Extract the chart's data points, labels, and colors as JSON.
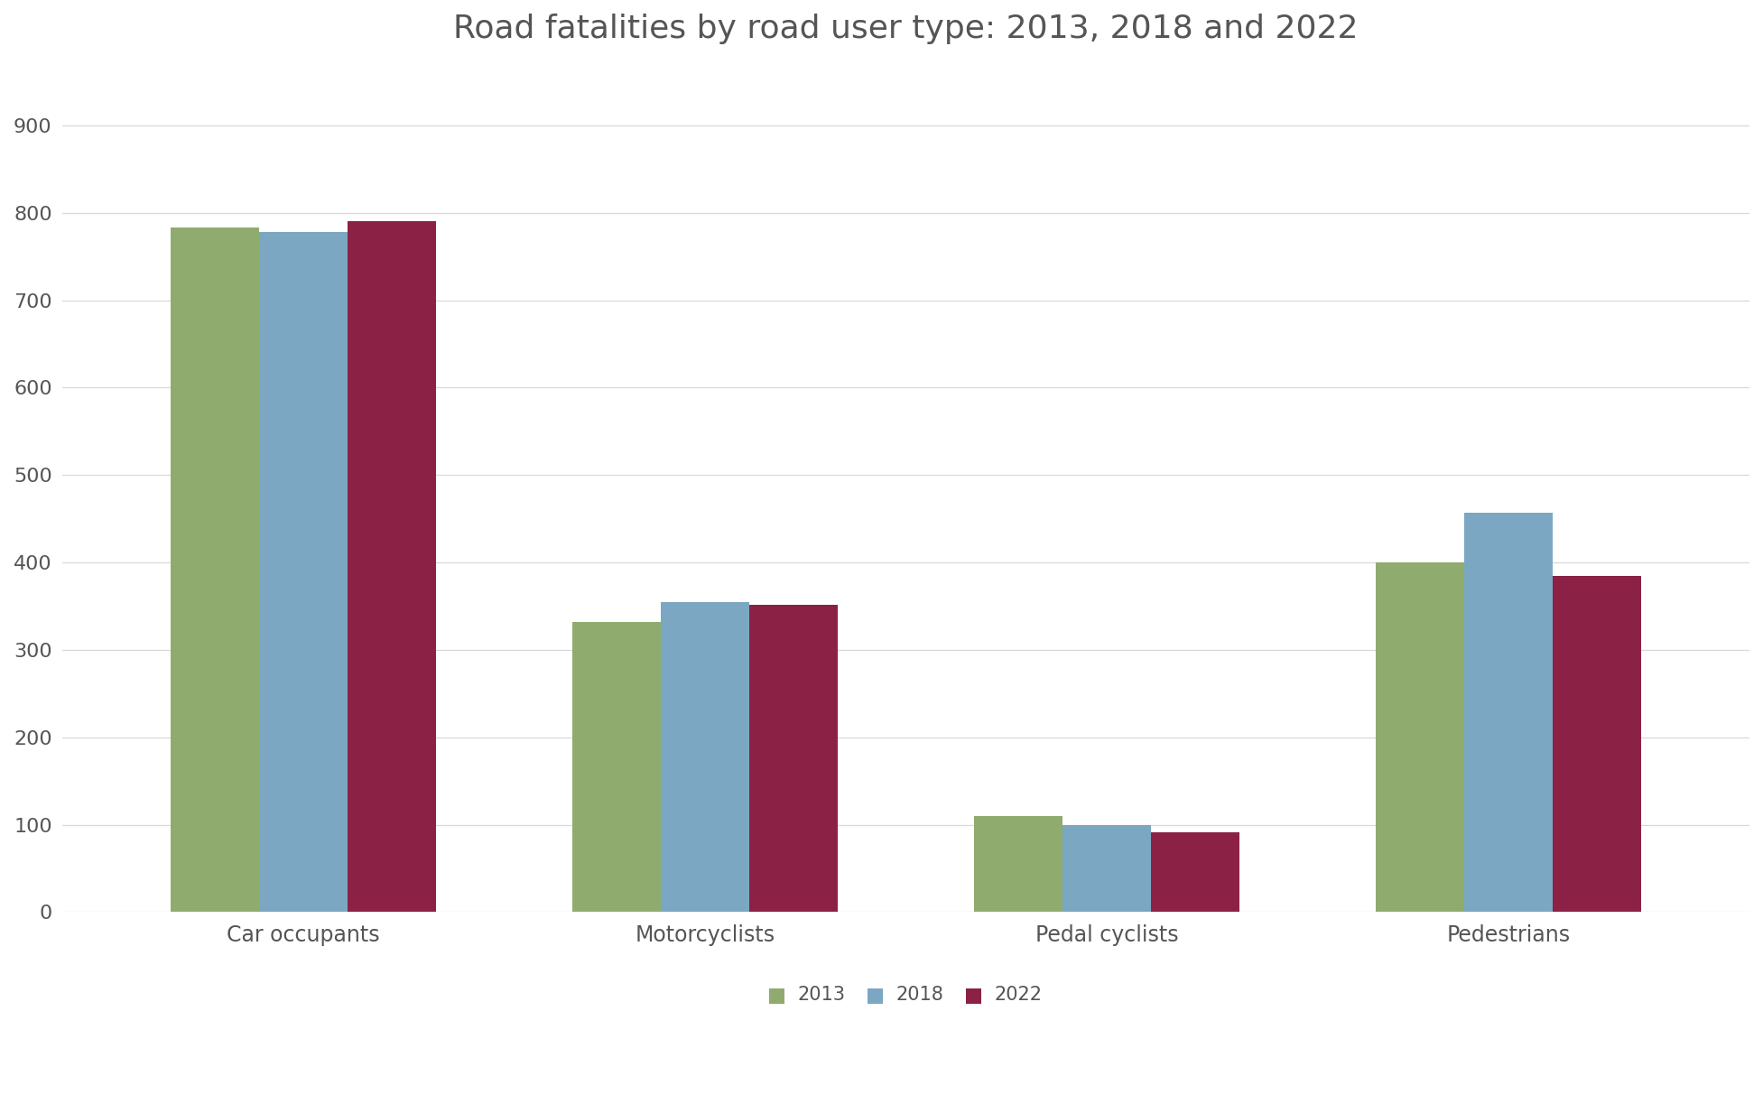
{
  "title": "Road fatalities by road user type: 2013, 2018 and 2022",
  "categories": [
    "Car occupants",
    "Motorcyclists",
    "Pedal cyclists",
    "Pedestrians"
  ],
  "years": [
    "2013",
    "2018",
    "2022"
  ],
  "values": {
    "2013": [
      783,
      332,
      110,
      400
    ],
    "2018": [
      778,
      355,
      100,
      457
    ],
    "2022": [
      790,
      352,
      91,
      385
    ]
  },
  "colors": {
    "2013": "#8fac6e",
    "2018": "#7ba7c2",
    "2022": "#8c2146"
  },
  "ylim": [
    0,
    960
  ],
  "yticks": [
    0,
    100,
    200,
    300,
    400,
    500,
    600,
    700,
    800,
    900
  ],
  "background_color": "#ffffff",
  "title_fontsize": 26,
  "tick_fontsize": 16,
  "legend_fontsize": 15,
  "bar_width": 0.22,
  "text_color": "#555555"
}
